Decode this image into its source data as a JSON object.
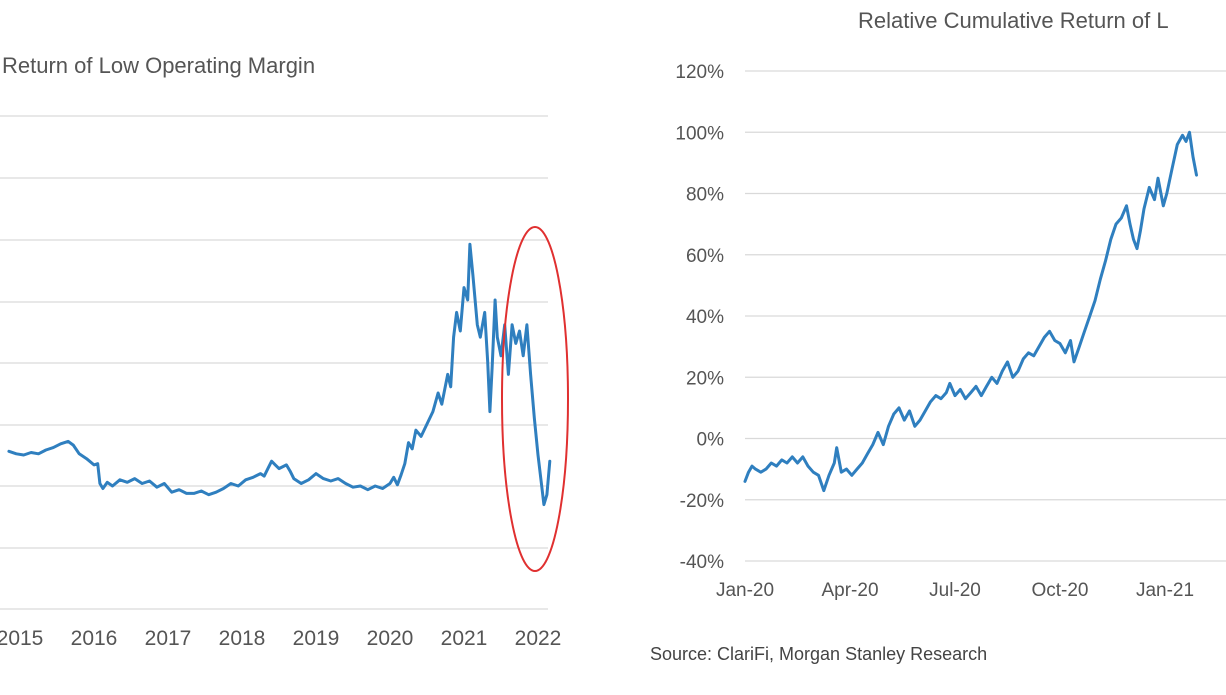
{
  "colors": {
    "line": "#2f7fbf",
    "grid": "#d9d9d9",
    "text": "#555555",
    "highlight": "#e03030",
    "background": "#ffffff"
  },
  "chart_data": [
    {
      "type": "line",
      "title": "Return of Low Operating Margin",
      "xlabel": "",
      "ylabel": "",
      "x_tick_labels": [
        "2015",
        "2016",
        "2017",
        "2018",
        "2019",
        "2020",
        "2021",
        "2022"
      ],
      "y_tick_labels": [],
      "grid": true,
      "legend": "none",
      "annotation": "red ellipse highlighting the late-2021 to 2022 decline",
      "series": [
        {
          "points": [
            [
              2014.85,
              0.28
            ],
            [
              2014.95,
              0.26
            ],
            [
              2015.05,
              0.25
            ],
            [
              2015.15,
              0.27
            ],
            [
              2015.25,
              0.26
            ],
            [
              2015.35,
              0.29
            ],
            [
              2015.45,
              0.31
            ],
            [
              2015.55,
              0.34
            ],
            [
              2015.65,
              0.36
            ],
            [
              2015.72,
              0.33
            ],
            [
              2015.8,
              0.26
            ],
            [
              2015.9,
              0.22
            ],
            [
              2016.0,
              0.17
            ],
            [
              2016.05,
              0.18
            ],
            [
              2016.08,
              0.02
            ],
            [
              2016.12,
              -0.02
            ],
            [
              2016.18,
              0.03
            ],
            [
              2016.25,
              0.0
            ],
            [
              2016.35,
              0.05
            ],
            [
              2016.45,
              0.03
            ],
            [
              2016.55,
              0.06
            ],
            [
              2016.65,
              0.02
            ],
            [
              2016.75,
              0.04
            ],
            [
              2016.85,
              -0.01
            ],
            [
              2016.95,
              0.02
            ],
            [
              2017.05,
              -0.05
            ],
            [
              2017.15,
              -0.03
            ],
            [
              2017.25,
              -0.06
            ],
            [
              2017.35,
              -0.06
            ],
            [
              2017.45,
              -0.04
            ],
            [
              2017.55,
              -0.07
            ],
            [
              2017.65,
              -0.05
            ],
            [
              2017.75,
              -0.02
            ],
            [
              2017.85,
              0.02
            ],
            [
              2017.95,
              0.0
            ],
            [
              2018.05,
              0.05
            ],
            [
              2018.15,
              0.07
            ],
            [
              2018.25,
              0.1
            ],
            [
              2018.3,
              0.08
            ],
            [
              2018.35,
              0.14
            ],
            [
              2018.4,
              0.2
            ],
            [
              2018.45,
              0.17
            ],
            [
              2018.5,
              0.14
            ],
            [
              2018.6,
              0.17
            ],
            [
              2018.65,
              0.12
            ],
            [
              2018.7,
              0.06
            ],
            [
              2018.8,
              0.02
            ],
            [
              2018.9,
              0.05
            ],
            [
              2019.0,
              0.1
            ],
            [
              2019.1,
              0.06
            ],
            [
              2019.2,
              0.04
            ],
            [
              2019.3,
              0.06
            ],
            [
              2019.4,
              0.02
            ],
            [
              2019.5,
              -0.01
            ],
            [
              2019.6,
              0.0
            ],
            [
              2019.7,
              -0.03
            ],
            [
              2019.8,
              0.0
            ],
            [
              2019.9,
              -0.02
            ],
            [
              2020.0,
              0.02
            ],
            [
              2020.05,
              0.07
            ],
            [
              2020.1,
              0.01
            ],
            [
              2020.15,
              0.09
            ],
            [
              2020.2,
              0.18
            ],
            [
              2020.25,
              0.35
            ],
            [
              2020.3,
              0.3
            ],
            [
              2020.35,
              0.45
            ],
            [
              2020.42,
              0.4
            ],
            [
              2020.5,
              0.5
            ],
            [
              2020.58,
              0.6
            ],
            [
              2020.65,
              0.75
            ],
            [
              2020.7,
              0.66
            ],
            [
              2020.78,
              0.9
            ],
            [
              2020.82,
              0.8
            ],
            [
              2020.86,
              1.2
            ],
            [
              2020.9,
              1.4
            ],
            [
              2020.95,
              1.25
            ],
            [
              2021.0,
              1.6
            ],
            [
              2021.05,
              1.5
            ],
            [
              2021.08,
              1.95
            ],
            [
              2021.12,
              1.7
            ],
            [
              2021.18,
              1.3
            ],
            [
              2021.22,
              1.2
            ],
            [
              2021.28,
              1.4
            ],
            [
              2021.32,
              1.0
            ],
            [
              2021.35,
              0.6
            ],
            [
              2021.38,
              0.95
            ],
            [
              2021.42,
              1.5
            ],
            [
              2021.45,
              1.2
            ],
            [
              2021.5,
              1.05
            ],
            [
              2021.55,
              1.3
            ],
            [
              2021.6,
              0.9
            ],
            [
              2021.65,
              1.3
            ],
            [
              2021.7,
              1.15
            ],
            [
              2021.75,
              1.25
            ],
            [
              2021.8,
              1.05
            ],
            [
              2021.85,
              1.3
            ],
            [
              2021.9,
              0.9
            ],
            [
              2021.95,
              0.55
            ],
            [
              2022.0,
              0.25
            ],
            [
              2022.05,
              0.0
            ],
            [
              2022.08,
              -0.15
            ],
            [
              2022.12,
              -0.07
            ],
            [
              2022.16,
              0.2
            ]
          ]
        }
      ]
    },
    {
      "type": "line",
      "title": "Relative Cumulative Return of L",
      "xlabel": "",
      "ylabel": "",
      "x_tick_labels": [
        "Jan-20",
        "Apr-20",
        "Jul-20",
        "Oct-20",
        "Jan-21"
      ],
      "y_tick_labels": [
        "120%",
        "100%",
        "80%",
        "60%",
        "40%",
        "20%",
        "0%",
        "-20%",
        "-40%"
      ],
      "ylim": [
        -40,
        120
      ],
      "grid": true,
      "legend": "none",
      "series": [
        {
          "points": [
            [
              0.0,
              -14
            ],
            [
              0.1,
              -11
            ],
            [
              0.2,
              -9
            ],
            [
              0.3,
              -10
            ],
            [
              0.45,
              -11
            ],
            [
              0.6,
              -10
            ],
            [
              0.75,
              -8
            ],
            [
              0.9,
              -9
            ],
            [
              1.05,
              -7
            ],
            [
              1.2,
              -8
            ],
            [
              1.35,
              -6
            ],
            [
              1.5,
              -8
            ],
            [
              1.65,
              -6
            ],
            [
              1.8,
              -9
            ],
            [
              1.95,
              -11
            ],
            [
              2.1,
              -12
            ],
            [
              2.25,
              -17
            ],
            [
              2.4,
              -12
            ],
            [
              2.55,
              -8
            ],
            [
              2.62,
              -3
            ],
            [
              2.75,
              -11
            ],
            [
              2.9,
              -10
            ],
            [
              3.05,
              -12
            ],
            [
              3.2,
              -10
            ],
            [
              3.35,
              -8
            ],
            [
              3.5,
              -5
            ],
            [
              3.65,
              -2
            ],
            [
              3.8,
              2
            ],
            [
              3.95,
              -2
            ],
            [
              4.1,
              4
            ],
            [
              4.25,
              8
            ],
            [
              4.4,
              10
            ],
            [
              4.55,
              6
            ],
            [
              4.7,
              9
            ],
            [
              4.85,
              4
            ],
            [
              5.0,
              6
            ],
            [
              5.15,
              9
            ],
            [
              5.3,
              12
            ],
            [
              5.45,
              14
            ],
            [
              5.6,
              13
            ],
            [
              5.75,
              15
            ],
            [
              5.85,
              18
            ],
            [
              6.0,
              14
            ],
            [
              6.15,
              16
            ],
            [
              6.3,
              13
            ],
            [
              6.45,
              15
            ],
            [
              6.6,
              17
            ],
            [
              6.75,
              14
            ],
            [
              6.9,
              17
            ],
            [
              7.05,
              20
            ],
            [
              7.2,
              18
            ],
            [
              7.35,
              22
            ],
            [
              7.5,
              25
            ],
            [
              7.65,
              20
            ],
            [
              7.8,
              22
            ],
            [
              7.95,
              26
            ],
            [
              8.1,
              28
            ],
            [
              8.25,
              27
            ],
            [
              8.4,
              30
            ],
            [
              8.55,
              33
            ],
            [
              8.7,
              35
            ],
            [
              8.85,
              32
            ],
            [
              9.0,
              31
            ],
            [
              9.15,
              28
            ],
            [
              9.3,
              32
            ],
            [
              9.4,
              25
            ],
            [
              9.55,
              30
            ],
            [
              9.7,
              35
            ],
            [
              9.85,
              40
            ],
            [
              10.0,
              45
            ],
            [
              10.15,
              52
            ],
            [
              10.3,
              58
            ],
            [
              10.45,
              65
            ],
            [
              10.6,
              70
            ],
            [
              10.75,
              72
            ],
            [
              10.9,
              76
            ],
            [
              11.0,
              70
            ],
            [
              11.1,
              65
            ],
            [
              11.2,
              62
            ],
            [
              11.3,
              68
            ],
            [
              11.4,
              75
            ],
            [
              11.55,
              82
            ],
            [
              11.7,
              78
            ],
            [
              11.8,
              85
            ],
            [
              11.95,
              76
            ],
            [
              12.05,
              80
            ],
            [
              12.2,
              88
            ],
            [
              12.35,
              96
            ],
            [
              12.5,
              99
            ],
            [
              12.6,
              97
            ],
            [
              12.7,
              100
            ],
            [
              12.8,
              92
            ],
            [
              12.9,
              86
            ]
          ]
        }
      ]
    }
  ],
  "source": "Source: ClariFi, Morgan Stanley Research"
}
